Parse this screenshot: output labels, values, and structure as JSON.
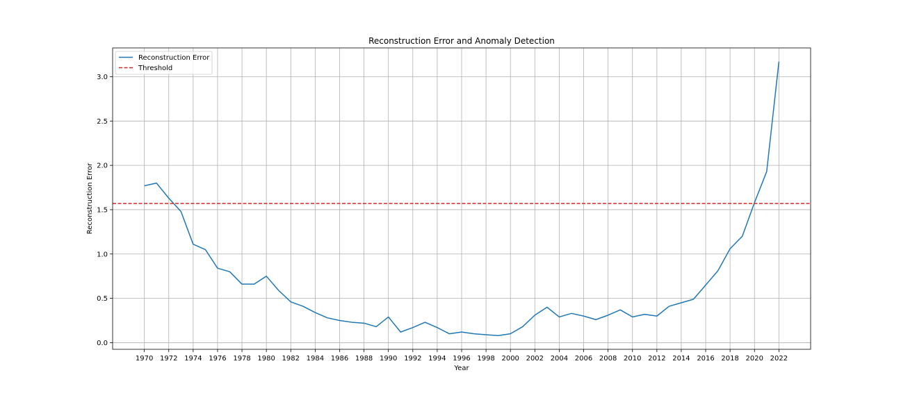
{
  "chart_data": {
    "type": "line",
    "title": "Reconstruction Error and Anomaly Detection",
    "xlabel": "Year",
    "ylabel": "Reconstruction Error",
    "xlim": [
      1967.4,
      2024.6
    ],
    "ylim": [
      -0.075,
      3.325
    ],
    "xticks": [
      1970,
      1972,
      1974,
      1976,
      1978,
      1980,
      1982,
      1984,
      1986,
      1988,
      1990,
      1992,
      1994,
      1996,
      1998,
      2000,
      2002,
      2004,
      2006,
      2008,
      2010,
      2012,
      2014,
      2016,
      2018,
      2020,
      2022
    ],
    "yticks": [
      0.0,
      0.5,
      1.0,
      1.5,
      2.0,
      2.5,
      3.0
    ],
    "grid": true,
    "legend_position": "top-left",
    "series": [
      {
        "name": "Reconstruction Error",
        "color": "#1f77b4",
        "style": "solid",
        "x": [
          1970,
          1971,
          1972,
          1973,
          1974,
          1975,
          1976,
          1977,
          1978,
          1979,
          1980,
          1981,
          1982,
          1983,
          1984,
          1985,
          1986,
          1987,
          1988,
          1989,
          1990,
          1991,
          1992,
          1993,
          1994,
          1995,
          1996,
          1997,
          1998,
          1999,
          2000,
          2001,
          2002,
          2003,
          2004,
          2005,
          2006,
          2007,
          2008,
          2009,
          2010,
          2011,
          2012,
          2013,
          2014,
          2015,
          2016,
          2017,
          2018,
          2019,
          2020,
          2021,
          2022
        ],
        "values": [
          1.77,
          1.8,
          1.63,
          1.48,
          1.11,
          1.05,
          0.84,
          0.8,
          0.66,
          0.66,
          0.75,
          0.59,
          0.46,
          0.41,
          0.34,
          0.28,
          0.25,
          0.23,
          0.22,
          0.18,
          0.29,
          0.12,
          0.17,
          0.23,
          0.17,
          0.1,
          0.12,
          0.1,
          0.09,
          0.08,
          0.1,
          0.18,
          0.31,
          0.4,
          0.29,
          0.33,
          0.3,
          0.26,
          0.31,
          0.37,
          0.29,
          0.32,
          0.3,
          0.41,
          0.45,
          0.49,
          0.65,
          0.81,
          1.06,
          1.2,
          1.58,
          1.93,
          3.17
        ]
      },
      {
        "name": "Threshold",
        "color": "#d62728",
        "style": "dashed",
        "y": 1.57
      }
    ]
  }
}
